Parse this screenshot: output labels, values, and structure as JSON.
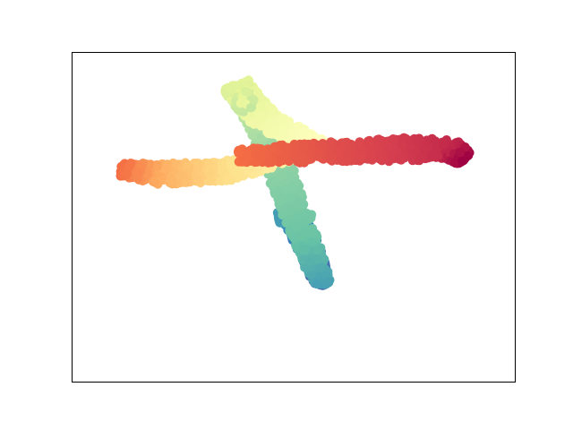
{
  "chart_data": {
    "type": "scatter",
    "title": "",
    "xlabel": "",
    "ylabel": "",
    "xlim": [
      0,
      100
    ],
    "ylim": [
      0,
      100
    ],
    "ticks_visible": false,
    "grid": false,
    "legend": "none",
    "colormap": "Spectral",
    "marker": "circle",
    "point_count_per_group": 700,
    "groups": [
      {
        "name": "",
        "color_t_range": [
          0.04,
          0.14
        ],
        "path": [
          [
            56.5,
            29.5
          ],
          [
            54.0,
            38.5
          ],
          [
            50.0,
            50.0
          ],
          [
            46.5,
            50.0
          ]
        ],
        "half_width": 2.6
      },
      {
        "name": "",
        "color_t_range": [
          0.14,
          0.34
        ],
        "path": [
          [
            56.5,
            29.5
          ],
          [
            52.5,
            44.0
          ],
          [
            45.0,
            71.5
          ],
          [
            39.5,
            82.5
          ]
        ],
        "half_width": 3.0
      },
      {
        "name": "",
        "color_t_range": [
          0.34,
          0.5
        ],
        "path": [
          [
            39.5,
            82.5
          ],
          [
            37.0,
            90.0
          ],
          [
            44.0,
            79.0
          ],
          [
            56.0,
            71.5
          ]
        ],
        "half_width": 3.2
      },
      {
        "name": "",
        "color_t_range": [
          0.5,
          0.8
        ],
        "path": [
          [
            56.0,
            71.5
          ],
          [
            35.0,
            64.0
          ],
          [
            20.0,
            63.0
          ],
          [
            11.0,
            64.5
          ]
        ],
        "half_width": 3.2
      },
      {
        "name": "",
        "color_t_range": [
          0.8,
          1.0
        ],
        "path": [
          [
            37.5,
            68.5
          ],
          [
            60.0,
            70.0
          ],
          [
            85.0,
            71.0
          ],
          [
            88.5,
            67.5
          ]
        ],
        "half_width": 3.4
      }
    ]
  }
}
